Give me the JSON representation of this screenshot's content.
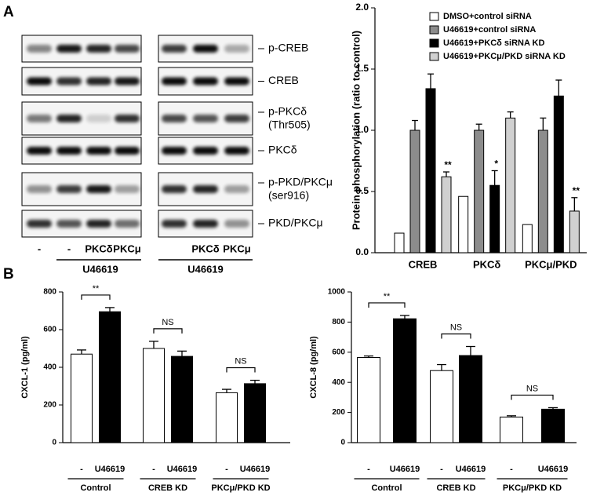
{
  "panel_labels": [
    "A",
    "B"
  ],
  "blots": {
    "rows": [
      {
        "lines": [
          "p-CREB"
        ]
      },
      {
        "lines": [
          "CREB"
        ]
      },
      {
        "lines": [
          "p-PKCδ",
          "(Thr505)"
        ]
      },
      {
        "lines": [
          "PKCδ"
        ]
      },
      {
        "lines": [
          "p-PKD/PKCμ",
          "(ser916)"
        ]
      },
      {
        "lines": [
          "PKD/PKCμ"
        ]
      }
    ],
    "left_lanes": [
      "-",
      "-",
      "PKCδ",
      "PKCμ"
    ],
    "right_lanes": [
      "PKCδ",
      "PKCμ"
    ],
    "treatment": [
      "U46619",
      "U46619"
    ]
  },
  "chart_data": [
    {
      "type": "bar",
      "y_label": "Protein phosphorylation (ratio to control)",
      "categories": [
        "CREB",
        "PKCδ",
        "PKCμ/PKD"
      ],
      "series": [
        {
          "name": "DMSO+control siRNA",
          "color": "#ffffff",
          "values": [
            0.16,
            0.46,
            0.23
          ],
          "errors": [
            null,
            null,
            null
          ],
          "significance": [
            null,
            null,
            null
          ]
        },
        {
          "name": "U46619+control siRNA",
          "color": "#8c8c8c",
          "values": [
            1.0,
            1.0,
            1.0
          ],
          "errors": [
            0.08,
            0.05,
            0.1
          ],
          "significance": [
            null,
            null,
            null
          ]
        },
        {
          "name": "U46619+PKCδ siRNA KD",
          "color": "#000000",
          "values": [
            1.34,
            0.55,
            1.28
          ],
          "errors": [
            0.12,
            0.12,
            0.13
          ],
          "significance": [
            null,
            "*",
            null
          ]
        },
        {
          "name": "U46619+PKCμ/PKD siRNA KD",
          "color": "#d0d0d0",
          "values": [
            0.62,
            1.1,
            0.34
          ],
          "errors": [
            0.04,
            0.05,
            0.11
          ],
          "significance": [
            "**",
            null,
            "**"
          ]
        }
      ],
      "ylim": [
        0,
        2
      ],
      "yticks": [
        {
          "value": 0,
          "label": "0.0"
        },
        {
          "value": 0.5,
          "label": "0.5"
        },
        {
          "value": 1,
          "label": "1.0"
        },
        {
          "value": 1.5,
          "label": "1.5"
        },
        {
          "value": 2,
          "label": "2.0"
        }
      ],
      "legend": "top-right"
    },
    {
      "type": "bar",
      "y_label": "CXCL-1 (pg/ml)",
      "categories": [
        "-",
        "U46619",
        "-",
        "U46619",
        "-",
        "U46619"
      ],
      "groups": [
        "Control",
        "CREB KD",
        "PKCμ/PKD KD"
      ],
      "significance": [
        "**",
        "NS",
        "NS"
      ],
      "colors": [
        "#ffffff",
        "#000000",
        "#ffffff",
        "#000000",
        "#ffffff",
        "#000000"
      ],
      "values": [
        470,
        695,
        500,
        458,
        265,
        313
      ],
      "errors": [
        22,
        22,
        38,
        28,
        18,
        18
      ],
      "ylim": [
        0,
        800
      ],
      "yticks": [
        0,
        200,
        400,
        600,
        800
      ]
    },
    {
      "type": "bar",
      "y_label": "CXCL-8 (pg/ml)",
      "categories": [
        "-",
        "U46619",
        "-",
        "U46619",
        "-",
        "U46619"
      ],
      "groups": [
        "Control",
        "CREB KD",
        "PKCμ/PKD KD"
      ],
      "significance": [
        "**",
        "NS",
        "NS"
      ],
      "colors": [
        "#ffffff",
        "#000000",
        "#ffffff",
        "#000000",
        "#ffffff",
        "#000000"
      ],
      "values": [
        565,
        822,
        478,
        578,
        170,
        222
      ],
      "errors": [
        10,
        22,
        40,
        60,
        8,
        10
      ],
      "ylim": [
        0,
        1000
      ],
      "yticks": [
        0,
        200,
        400,
        600,
        800,
        1000
      ]
    }
  ]
}
